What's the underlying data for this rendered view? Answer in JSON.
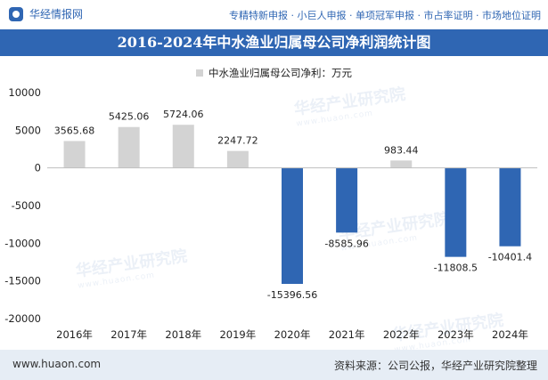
{
  "header": {
    "logo_text": "华经情报网",
    "tagline": "专精特新申报 · 小巨人申报 · 单项冠军申报 · 市占率证明 · 市场地位证明"
  },
  "colors": {
    "brand": "#2f66b3",
    "positive_bar": "#d3d3d3",
    "negative_bar": "#2f66b3",
    "footer_bg": "#e6edf5"
  },
  "watermark_text": "华经产业研究院",
  "watermark_url": "www.huaon.com",
  "footer": {
    "url": "www.huaon.com",
    "source": "资料来源：公司公报，华经产业研究院整理"
  },
  "chart_data": {
    "type": "bar",
    "title": "2016-2024年中水渔业归属母公司净利润统计图",
    "legend": "中水渔业归属母公司净利：万元",
    "categories": [
      "2016年",
      "2017年",
      "2018年",
      "2019年",
      "2020年",
      "2021年",
      "2022年",
      "2023年",
      "2024年"
    ],
    "values": [
      3565.68,
      5425.06,
      5724.06,
      2247.72,
      -15396.56,
      -8585.96,
      983.44,
      -11808.5,
      -10401.4
    ],
    "value_labels": [
      "3565.68",
      "5425.06",
      "5724.06",
      "2247.72",
      "-15396.56",
      "-8585.96",
      "983.44",
      "-11808.5",
      "-10401.4"
    ],
    "ylim": [
      -20000,
      10000
    ],
    "yticks": [
      10000,
      5000,
      0,
      -5000,
      -10000,
      -15000,
      -20000
    ],
    "ytick_labels": [
      "10000",
      "5000",
      "0",
      "-5000",
      "-10000",
      "-15000",
      "-20000"
    ],
    "xlabel": "",
    "ylabel": "",
    "grid": false
  }
}
